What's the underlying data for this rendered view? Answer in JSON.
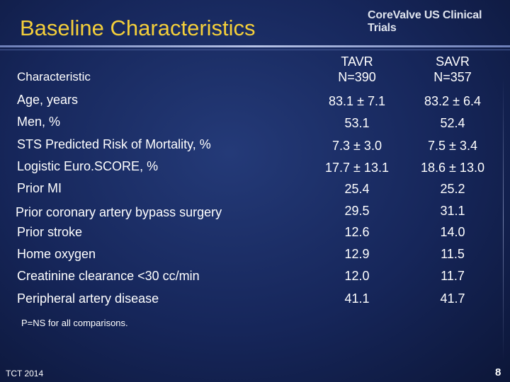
{
  "slide": {
    "title": "Baseline Characteristics",
    "brand": "CoreValve US Clinical Trials",
    "footnote": "P=NS for all comparisons.",
    "footer": "TCT 2014",
    "page_number": "8",
    "colors": {
      "title": "#f4cf3a",
      "background": "#1a2b63"
    }
  },
  "table": {
    "header": {
      "characteristic": "Characteristic",
      "tavr_line1": "TAVR",
      "tavr_line2": "N=390",
      "savr_line1": "SAVR",
      "savr_line2": "N=357"
    },
    "rows": [
      {
        "label": "Age, years",
        "tavr": "83.1 ± 7.1",
        "savr": "83.2 ± 6.4"
      },
      {
        "label": "Men, %",
        "tavr": "53.1",
        "savr": "52.4"
      },
      {
        "label": "STS Predicted Risk of Mortality, %",
        "tavr": "7.3 ± 3.0",
        "savr": "7.5 ± 3.4"
      },
      {
        "label": "Logistic Euro.SCORE, %",
        "tavr": "17.7 ± 13.1",
        "savr": "18.6 ± 13.0"
      },
      {
        "label": "Prior MI",
        "tavr": "25.4",
        "savr": "25.2"
      },
      {
        "label": "Prior coronary artery bypass surgery",
        "tavr": "29.5",
        "savr": "31.1"
      },
      {
        "label": "Prior stroke",
        "tavr": "12.6",
        "savr": "14.0"
      },
      {
        "label": "Home oxygen",
        "tavr": "12.9",
        "savr": "11.5"
      },
      {
        "label": "Creatinine clearance <30 cc/min",
        "tavr": "12.0",
        "savr": "11.7"
      },
      {
        "label": "Peripheral artery disease",
        "tavr": "41.1",
        "savr": "41.7"
      }
    ]
  }
}
